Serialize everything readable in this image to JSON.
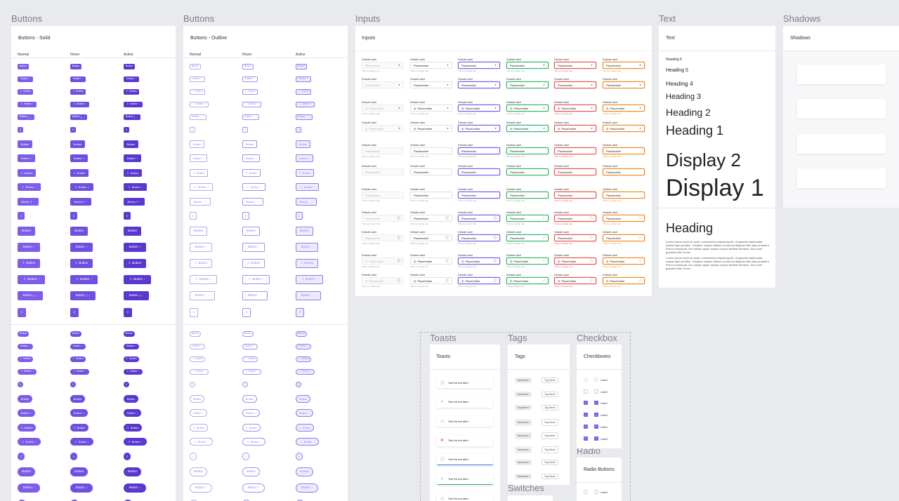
{
  "sections": {
    "buttons1": "Buttons",
    "buttons2": "Buttons",
    "inputs": "Inputs",
    "text": "Text",
    "shadows": "Shadows",
    "toasts": "Toasts",
    "tags": "Tags",
    "checkbox": "Checkbox",
    "radio": "Radio",
    "switches": "Switches"
  },
  "frames": {
    "solid": "Buttons - Solid",
    "outline": "Buttons - Outline",
    "inputs": "Inputs",
    "text": "Text",
    "shadows": "Shadows",
    "toasts": "Toasts",
    "tags": "Tags",
    "checkboxes": "Checkboxes",
    "radio": "Radio Buttons"
  },
  "button_cols": [
    "Normal",
    "Hover",
    "Active"
  ],
  "button": {
    "label": "Button",
    "arrow": "›",
    "down": "⌄",
    "icon": "⇩"
  },
  "inputs": {
    "label": "Default Label",
    "placeholder": "Placeholder",
    "helper": "This is a helper text",
    "error": "This is a helper text"
  },
  "text": {
    "heading6": "Heading 6",
    "heading5": "Heading 5",
    "heading4": "Heading 4",
    "heading3": "Heading 3",
    "heading2": "Heading 2",
    "heading1": "Heading 1",
    "display2": "Display 2",
    "display1": "Display 1",
    "heading": "Heading",
    "para1": "Lorem ipsum dolor sit amet, consectetur adipiscing elit. Ut gravida malesuada massa eget porttitor. Tristique massa ultrices commodo aliquam nibh quis praesent. Purus consequat, nec nullam quam massa cursus facilisis tincidunt. Arcu erat gravida tortor et est.",
    "para2": "Lorem ipsum dolor sit amet, consectetur adipiscing elit. Ut gravida malesuada massa eget porttitor. Tristique massa ultrices commodo aliquam nibh quis praesent. Purus consequat, nec nullam quam massa cursus facilisis tincidunt. Arcu erat gravida tortor et est."
  },
  "toasts": {
    "text": "Text for the alert"
  },
  "tags": {
    "name": "Tag Name"
  },
  "checkboxes": {
    "label": "Label"
  },
  "colors": {
    "primary": "#7c5ce8",
    "success": "#34b36a",
    "error": "#ea5050",
    "warning": "#ef8a23",
    "info": "#3a7ee8"
  }
}
